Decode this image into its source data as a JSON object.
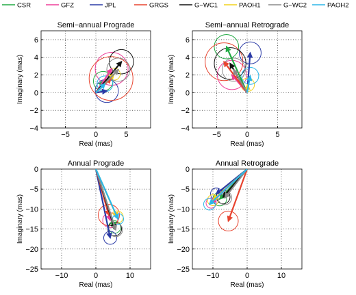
{
  "legend": [
    {
      "name": "CSR",
      "color": "#22aa44"
    },
    {
      "name": "GFZ",
      "color": "#ee3f9a"
    },
    {
      "name": "JPL",
      "color": "#2a3aa6"
    },
    {
      "name": "GRGS",
      "color": "#e8432e"
    },
    {
      "name": "G−WC1",
      "color": "#111111"
    },
    {
      "name": "PAOH1",
      "color": "#f2d21b"
    },
    {
      "name": "G−WC2",
      "color": "#8a8a8a"
    },
    {
      "name": "PAOH2",
      "color": "#2bb6e8"
    }
  ],
  "chart_data": [
    {
      "type": "scatter",
      "title": "Semi−annual Prograde",
      "xlabel": "Real (mas)",
      "ylabel": "Imaginary (mas)",
      "xlim": [
        -9,
        9
      ],
      "ylim": [
        -4,
        7
      ],
      "xticks": [
        -5,
        0,
        5
      ],
      "yticks": [
        -4,
        -2,
        0,
        2,
        4,
        6
      ],
      "series": [
        {
          "name": "CSR",
          "end": [
            1.2,
            1.3
          ],
          "radius": 1.6
        },
        {
          "name": "GFZ",
          "end": [
            2.6,
            2.7
          ],
          "radius": 2.7
        },
        {
          "name": "JPL",
          "end": [
            1.8,
            0.2
          ],
          "radius": 1.9
        },
        {
          "name": "GRGS",
          "end": [
            2.5,
            1.6
          ],
          "radius": 3.6
        },
        {
          "name": "G−WC1",
          "end": [
            4.2,
            3.5
          ],
          "radius": 2.0
        },
        {
          "name": "PAOH1",
          "end": [
            3.0,
            2.1
          ],
          "radius": 1.0
        },
        {
          "name": "G−WC2",
          "end": [
            3.7,
            2.6
          ],
          "radius": 1.9
        },
        {
          "name": "PAOH2",
          "end": [
            1.5,
            1.0
          ],
          "radius": 1.3
        }
      ]
    },
    {
      "type": "scatter",
      "title": "Semi−annual Retrograde",
      "xlabel": "Real (mas)",
      "ylabel": "Imaginary (mas)",
      "xlim": [
        -9,
        9
      ],
      "ylim": [
        -4,
        7
      ],
      "xticks": [
        -5,
        0,
        5
      ],
      "yticks": [
        -4,
        -2,
        0,
        2,
        4,
        6
      ],
      "series": [
        {
          "name": "CSR",
          "end": [
            -3.4,
            5.2
          ],
          "radius": 2.0
        },
        {
          "name": "GFZ",
          "end": [
            -2.5,
            2.0
          ],
          "radius": 2.4
        },
        {
          "name": "JPL",
          "end": [
            0.5,
            4.5
          ],
          "radius": 1.8
        },
        {
          "name": "GRGS",
          "end": [
            -3.8,
            3.5
          ],
          "radius": 3.1
        },
        {
          "name": "G−WC1",
          "end": [
            -2.8,
            3.3
          ],
          "radius": 2.6
        },
        {
          "name": "PAOH1",
          "end": [
            0.1,
            0.9
          ],
          "radius": 1.1
        },
        {
          "name": "G−WC2",
          "end": [
            -2.2,
            2.6
          ],
          "radius": 1.9
        },
        {
          "name": "PAOH2",
          "end": [
            0.5,
            1.9
          ],
          "radius": 1.4
        }
      ]
    },
    {
      "type": "scatter",
      "title": "Annual Prograde",
      "xlabel": "Real (mas)",
      "ylabel": "Imaginary (mas)",
      "xlim": [
        -16,
        16
      ],
      "ylim": [
        -25,
        0
      ],
      "xticks": [
        -10,
        0,
        10
      ],
      "yticks": [
        -25,
        -20,
        -15,
        -10,
        -5,
        0
      ],
      "series": [
        {
          "name": "CSR",
          "end": [
            5.5,
            -14.5
          ],
          "radius": 1.8
        },
        {
          "name": "GFZ",
          "end": [
            4.2,
            -12.8
          ],
          "radius": 2.2
        },
        {
          "name": "JPL",
          "end": [
            4.2,
            -17.2
          ],
          "radius": 1.9
        },
        {
          "name": "GRGS",
          "end": [
            3.8,
            -11.5
          ],
          "radius": 3.1
        },
        {
          "name": "G−WC1",
          "end": [
            5.5,
            -15.0
          ],
          "radius": 2.0
        },
        {
          "name": "PAOH1",
          "end": [
            6.2,
            -12.0
          ],
          "radius": 1.8
        },
        {
          "name": "G−WC2",
          "end": [
            5.8,
            -15.2
          ],
          "radius": 2.0
        },
        {
          "name": "PAOH2",
          "end": [
            6.5,
            -12.5
          ],
          "radius": 1.6
        }
      ]
    },
    {
      "type": "scatter",
      "title": "Annual Retrograde",
      "xlabel": "Real (mas)",
      "ylabel": "Imaginary (mas)",
      "xlim": [
        -16,
        16
      ],
      "ylim": [
        -25,
        0
      ],
      "xticks": [
        -10,
        0,
        10
      ],
      "yticks": [
        -25,
        -20,
        -15,
        -10,
        -5,
        0
      ],
      "series": [
        {
          "name": "CSR",
          "end": [
            -8.0,
            -7.5
          ],
          "radius": 2.0
        },
        {
          "name": "GFZ",
          "end": [
            -10.5,
            -8.5
          ],
          "radius": 1.5
        },
        {
          "name": "JPL",
          "end": [
            -9.0,
            -6.2
          ],
          "radius": 1.7
        },
        {
          "name": "GRGS",
          "end": [
            -5.5,
            -13.0
          ],
          "radius": 2.9
        },
        {
          "name": "G−WC1",
          "end": [
            -7.0,
            -7.0
          ],
          "radius": 2.0
        },
        {
          "name": "PAOH1",
          "end": [
            -10.0,
            -7.8
          ],
          "radius": 1.6
        },
        {
          "name": "G−WC2",
          "end": [
            -6.5,
            -7.2
          ],
          "radius": 2.0
        },
        {
          "name": "PAOH2",
          "end": [
            -11.0,
            -8.8
          ],
          "radius": 1.7
        }
      ]
    }
  ]
}
